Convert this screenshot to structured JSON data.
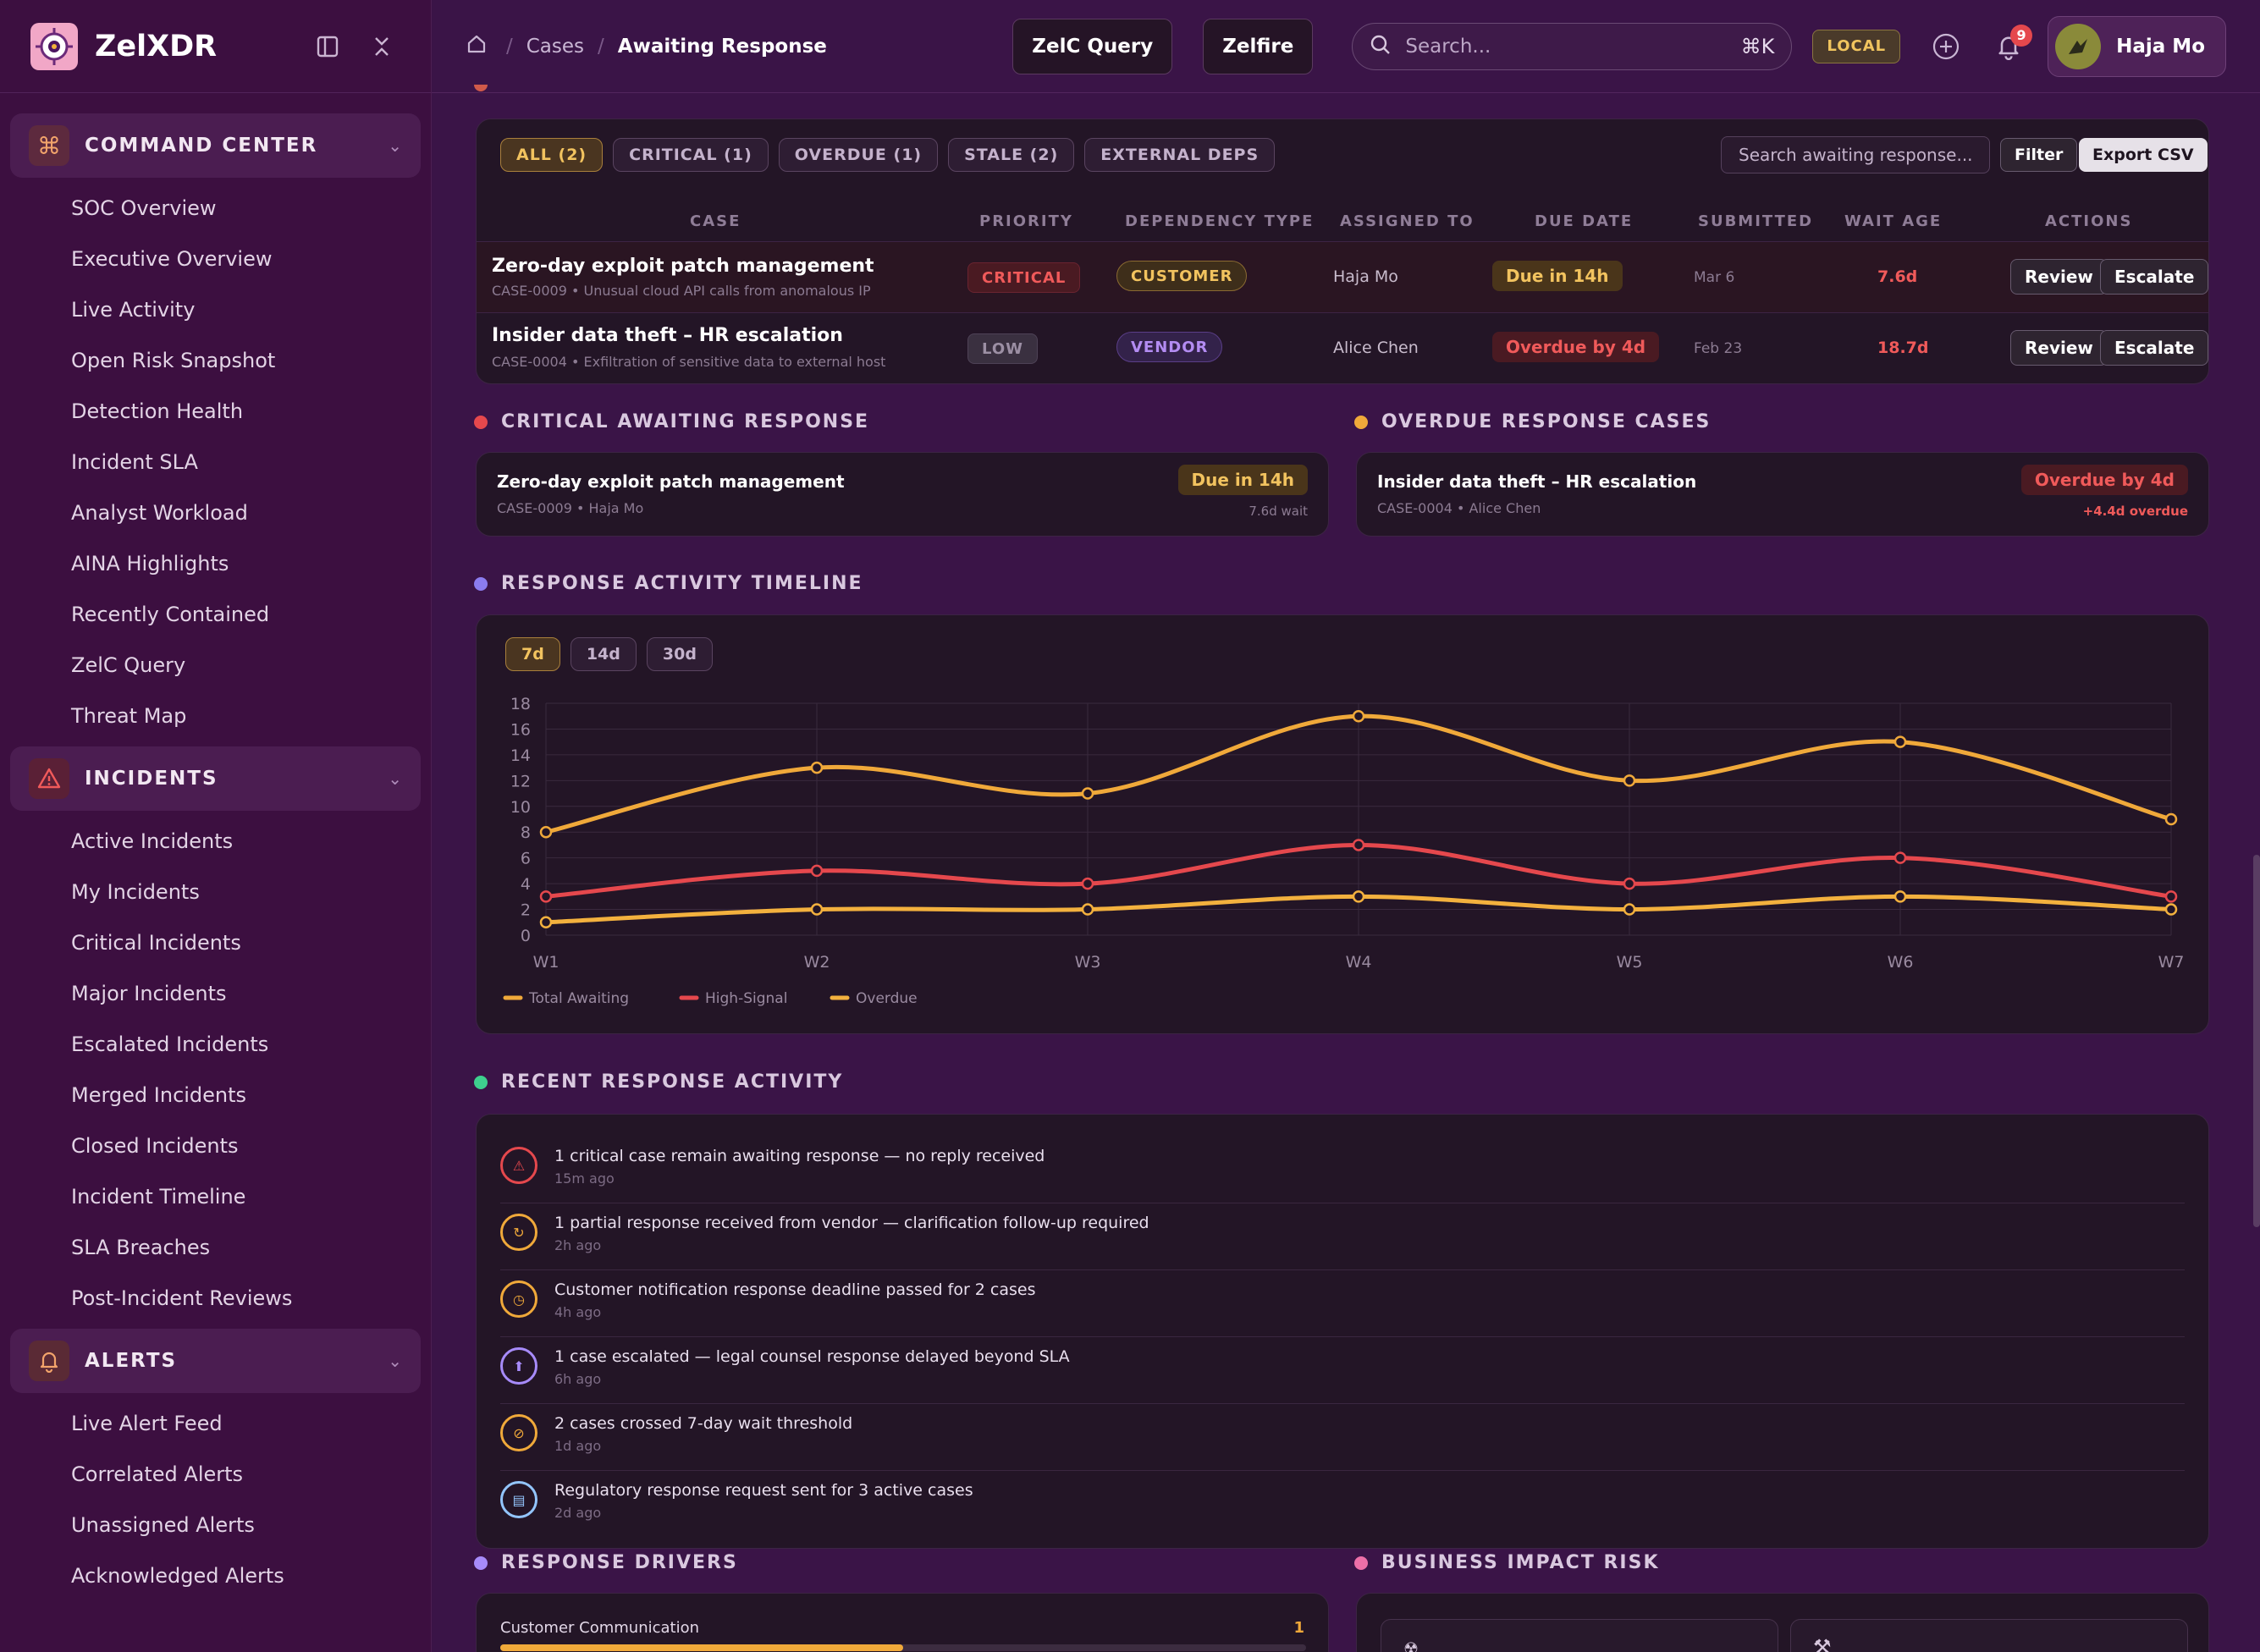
{
  "brand": {
    "name": "ZelXDR"
  },
  "sidebar": {
    "sections": [
      {
        "title": "COMMAND CENTER",
        "items": [
          "SOC Overview",
          "Executive Overview",
          "Live Activity",
          "Open Risk Snapshot",
          "Detection Health",
          "Incident SLA",
          "Analyst Workload",
          "AINA Highlights",
          "Recently Contained",
          "ZelC Query",
          "Threat Map"
        ]
      },
      {
        "title": "INCIDENTS",
        "items": [
          "Active Incidents",
          "My Incidents",
          "Critical Incidents",
          "Major Incidents",
          "Escalated Incidents",
          "Merged Incidents",
          "Closed Incidents",
          "Incident Timeline",
          "SLA Breaches",
          "Post-Incident Reviews"
        ]
      },
      {
        "title": "ALERTS",
        "items": [
          "Live Alert Feed",
          "Correlated Alerts",
          "Unassigned Alerts",
          "Acknowledged Alerts"
        ]
      }
    ]
  },
  "topbar": {
    "crumbs": [
      "Cases",
      "Awaiting Response"
    ],
    "query_btn": "ZelC Query",
    "zelfire_btn": "Zelfire",
    "search_placeholder": "Search...",
    "shortcut": "⌘K",
    "env": "LOCAL",
    "notif_count": "9",
    "user": "Haja Mo"
  },
  "table": {
    "filters": [
      "ALL (2)",
      "CRITICAL (1)",
      "OVERDUE (1)",
      "STALE (2)",
      "EXTERNAL DEPS"
    ],
    "search_placeholder": "Search awaiting response...",
    "filter_btn": "Filter",
    "export_btn": "Export CSV",
    "headers": [
      "CASE",
      "PRIORITY",
      "DEPENDENCY TYPE",
      "ASSIGNED TO",
      "DUE DATE",
      "SUBMITTED",
      "WAIT AGE",
      "ACTIONS"
    ],
    "rows": [
      {
        "title": "Zero-day exploit patch management",
        "sub": "CASE-0009 • Unusual cloud API calls from anomalous IP",
        "priority": "CRITICAL",
        "dep": "CUSTOMER",
        "assigned": "Haja Mo",
        "due": "Due in 14h",
        "submitted": "Mar 6",
        "wait": "7.6d",
        "review": "Review",
        "escalate": "Escalate"
      },
      {
        "title": "Insider data theft – HR escalation",
        "sub": "CASE-0004 • Exfiltration of sensitive data to external host",
        "priority": "LOW",
        "dep": "VENDOR",
        "assigned": "Alice Chen",
        "due": "Overdue by 4d",
        "submitted": "Feb 23",
        "wait": "18.7d",
        "review": "Review",
        "escalate": "Escalate"
      }
    ]
  },
  "critical": {
    "heading": "CRITICAL AWAITING RESPONSE",
    "title": "Zero-day exploit patch management",
    "sub": "CASE-0009 • Haja Mo",
    "badge": "Due in 14h",
    "note": "7.6d wait"
  },
  "overdue": {
    "heading": "OVERDUE RESPONSE CASES",
    "title": "Insider data theft – HR escalation",
    "sub": "CASE-0004 • Alice Chen",
    "badge": "Overdue by 4d",
    "note": "+4.4d overdue"
  },
  "timeline": {
    "heading": "RESPONSE ACTIVITY TIMELINE",
    "ranges": [
      "7d",
      "14d",
      "30d"
    ]
  },
  "chart_data": {
    "type": "line",
    "x": [
      "W1",
      "W2",
      "W3",
      "W4",
      "W5",
      "W6",
      "W7"
    ],
    "ylim": [
      0,
      18
    ],
    "yticks": [
      0,
      2,
      4,
      6,
      8,
      10,
      12,
      14,
      16,
      18
    ],
    "grid": true,
    "legend": "bottom-left",
    "series": [
      {
        "name": "Total Awaiting",
        "color": "#f0a93a",
        "values": [
          8,
          13,
          11,
          17,
          12,
          15,
          9
        ]
      },
      {
        "name": "High-Signal",
        "color": "#e5484d",
        "values": [
          3,
          5,
          4,
          7,
          4,
          6,
          3
        ]
      },
      {
        "name": "Overdue",
        "color": "#f3b13e",
        "values": [
          1,
          2,
          2,
          3,
          2,
          3,
          2
        ]
      }
    ]
  },
  "activity": {
    "heading": "RECENT RESPONSE ACTIVITY",
    "items": [
      {
        "text": "1 critical case remain awaiting response — no reply received",
        "time": "15m ago",
        "icon": "warning-icon",
        "color": "#e5484d",
        "glyph": "⚠"
      },
      {
        "text": "1 partial response received from vendor — clarification follow-up required",
        "time": "2h ago",
        "icon": "refresh-icon",
        "color": "#f0a93a",
        "glyph": "↻"
      },
      {
        "text": "Customer notification response deadline passed for 2 cases",
        "time": "4h ago",
        "icon": "clock-icon",
        "color": "#f0a93a",
        "glyph": "◷"
      },
      {
        "text": "1 case escalated — legal counsel response delayed beyond SLA",
        "time": "6h ago",
        "icon": "arrow-up-icon",
        "color": "#a78bfa",
        "glyph": "⬆"
      },
      {
        "text": "2 cases crossed 7-day wait threshold",
        "time": "1d ago",
        "icon": "block-icon",
        "color": "#f0a93a",
        "glyph": "⊘"
      },
      {
        "text": "Regulatory response request sent for 3 active cases",
        "time": "2d ago",
        "icon": "document-icon",
        "color": "#93c5fd",
        "glyph": "▤"
      }
    ]
  },
  "drivers": {
    "heading": "RESPONSE DRIVERS",
    "items": [
      {
        "label": "Customer Communication",
        "value": "1",
        "fraction": 0.5
      }
    ]
  },
  "impact": {
    "heading": "BUSINESS IMPACT RISK"
  }
}
